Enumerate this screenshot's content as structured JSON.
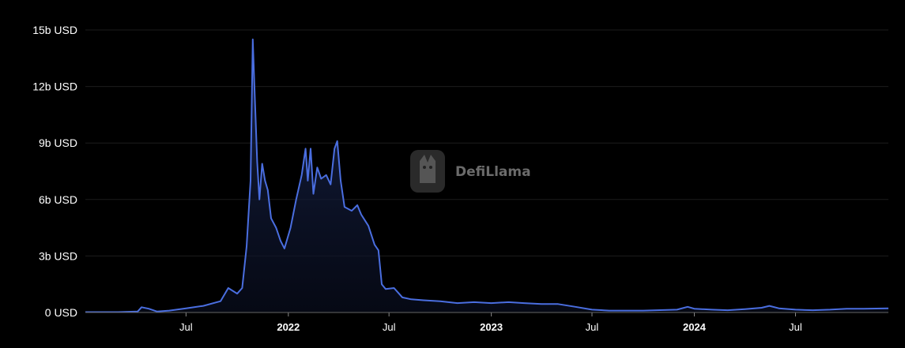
{
  "chart_data": {
    "type": "area",
    "title": "",
    "xlabel": "",
    "ylabel": "",
    "x_range": [
      "2021-01-01",
      "2024-12-15"
    ],
    "ylim": [
      0,
      15
    ],
    "y_unit": "b USD",
    "grid": true,
    "y_ticks": [
      {
        "value": 0,
        "label": "0 USD"
      },
      {
        "value": 3,
        "label": "3b USD"
      },
      {
        "value": 6,
        "label": "6b USD"
      },
      {
        "value": 9,
        "label": "9b USD"
      },
      {
        "value": 12,
        "label": "12b USD"
      },
      {
        "value": 15,
        "label": "15b USD"
      }
    ],
    "x_ticks": [
      {
        "date": "2021-07-01",
        "label": "Jul",
        "year": false
      },
      {
        "date": "2022-01-01",
        "label": "2022",
        "year": true
      },
      {
        "date": "2022-07-01",
        "label": "Jul",
        "year": false
      },
      {
        "date": "2023-01-01",
        "label": "2023",
        "year": true
      },
      {
        "date": "2023-07-01",
        "label": "Jul",
        "year": false
      },
      {
        "date": "2024-01-01",
        "label": "2024",
        "year": true
      },
      {
        "date": "2024-07-01",
        "label": "Jul",
        "year": false
      }
    ],
    "series": [
      {
        "color": "#4a6ee0",
        "points": [
          [
            "2021-01-01",
            0.02
          ],
          [
            "2021-03-01",
            0.02
          ],
          [
            "2021-04-05",
            0.05
          ],
          [
            "2021-04-12",
            0.28
          ],
          [
            "2021-04-25",
            0.2
          ],
          [
            "2021-05-10",
            0.05
          ],
          [
            "2021-06-01",
            0.1
          ],
          [
            "2021-07-01",
            0.22
          ],
          [
            "2021-08-01",
            0.35
          ],
          [
            "2021-09-01",
            0.6
          ],
          [
            "2021-09-15",
            1.3
          ],
          [
            "2021-10-01",
            1.0
          ],
          [
            "2021-10-10",
            1.3
          ],
          [
            "2021-10-18",
            3.5
          ],
          [
            "2021-10-25",
            7.0
          ],
          [
            "2021-10-29",
            14.5
          ],
          [
            "2021-11-01",
            12.0
          ],
          [
            "2021-11-06",
            8.0
          ],
          [
            "2021-11-10",
            6.0
          ],
          [
            "2021-11-15",
            7.9
          ],
          [
            "2021-11-20",
            7.0
          ],
          [
            "2021-11-25",
            6.5
          ],
          [
            "2021-12-01",
            5.0
          ],
          [
            "2021-12-10",
            4.5
          ],
          [
            "2021-12-18",
            3.8
          ],
          [
            "2021-12-25",
            3.4
          ],
          [
            "2022-01-05",
            4.5
          ],
          [
            "2022-01-15",
            6.0
          ],
          [
            "2022-01-25",
            7.3
          ],
          [
            "2022-02-01",
            8.7
          ],
          [
            "2022-02-05",
            7.0
          ],
          [
            "2022-02-10",
            8.7
          ],
          [
            "2022-02-15",
            6.3
          ],
          [
            "2022-02-22",
            7.7
          ],
          [
            "2022-03-01",
            7.1
          ],
          [
            "2022-03-10",
            7.3
          ],
          [
            "2022-03-18",
            6.8
          ],
          [
            "2022-03-25",
            8.7
          ],
          [
            "2022-03-30",
            9.1
          ],
          [
            "2022-04-05",
            7.0
          ],
          [
            "2022-04-12",
            5.6
          ],
          [
            "2022-04-25",
            5.4
          ],
          [
            "2022-05-05",
            5.7
          ],
          [
            "2022-05-12",
            5.2
          ],
          [
            "2022-05-25",
            4.6
          ],
          [
            "2022-06-05",
            3.6
          ],
          [
            "2022-06-12",
            3.3
          ],
          [
            "2022-06-18",
            1.5
          ],
          [
            "2022-06-25",
            1.25
          ],
          [
            "2022-07-10",
            1.3
          ],
          [
            "2022-07-25",
            0.8
          ],
          [
            "2022-08-10",
            0.7
          ],
          [
            "2022-09-01",
            0.65
          ],
          [
            "2022-10-01",
            0.6
          ],
          [
            "2022-11-01",
            0.5
          ],
          [
            "2022-12-01",
            0.55
          ],
          [
            "2023-01-01",
            0.5
          ],
          [
            "2023-02-01",
            0.55
          ],
          [
            "2023-03-01",
            0.5
          ],
          [
            "2023-04-01",
            0.45
          ],
          [
            "2023-05-01",
            0.45
          ],
          [
            "2023-06-01",
            0.3
          ],
          [
            "2023-07-01",
            0.15
          ],
          [
            "2023-08-01",
            0.1
          ],
          [
            "2023-10-01",
            0.1
          ],
          [
            "2023-12-01",
            0.15
          ],
          [
            "2023-12-20",
            0.3
          ],
          [
            "2024-01-01",
            0.2
          ],
          [
            "2024-02-01",
            0.15
          ],
          [
            "2024-03-01",
            0.12
          ],
          [
            "2024-04-01",
            0.18
          ],
          [
            "2024-05-01",
            0.25
          ],
          [
            "2024-05-15",
            0.35
          ],
          [
            "2024-06-01",
            0.22
          ],
          [
            "2024-07-01",
            0.15
          ],
          [
            "2024-08-01",
            0.12
          ],
          [
            "2024-09-01",
            0.15
          ],
          [
            "2024-10-01",
            0.2
          ],
          [
            "2024-11-01",
            0.2
          ],
          [
            "2024-12-15",
            0.22
          ]
        ]
      }
    ]
  },
  "watermark": {
    "text": "DefiLlama",
    "icon": "llama-logo-icon"
  }
}
